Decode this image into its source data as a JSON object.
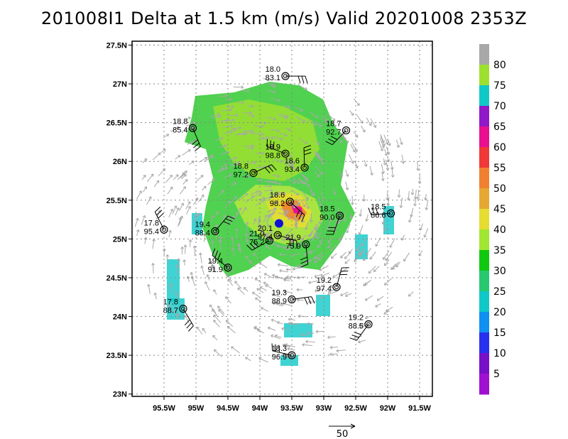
{
  "title": "201008I1 Delta at 1.5 km (m/s) Valid 20201008 2353Z",
  "map": {
    "x_ticks": [
      "95.5W",
      "95W",
      "94.5W",
      "94W",
      "93.5W",
      "93W",
      "92.5W",
      "92W",
      "91.5W"
    ],
    "y_ticks": [
      "27.5N",
      "27N",
      "26.5N",
      "26N",
      "25.5N",
      "25N",
      "24.5N",
      "24N",
      "23.5N",
      "23N"
    ],
    "lon_range": [
      -96.0,
      -91.3
    ],
    "lat_range": [
      22.97,
      27.55
    ],
    "storm_center": {
      "lon": -93.7,
      "lat": 25.2
    }
  },
  "colorbar": {
    "labels": [
      "80",
      "75",
      "70",
      "65",
      "60",
      "55",
      "50",
      "45",
      "40",
      "35",
      "30",
      "25",
      "20",
      "15",
      "10",
      "5"
    ],
    "colors": [
      "#a8a8a8",
      "#9ee030",
      "#10c8c8",
      "#9018c8",
      "#e81090",
      "#f03838",
      "#f08030",
      "#e6a832",
      "#e6dc32",
      "#a0e632",
      "#10c810",
      "#28c870",
      "#10c8c8",
      "#1090f0",
      "#2830f0",
      "#7810c8",
      "#a010d0"
    ]
  },
  "stations": [
    {
      "lon": -93.6,
      "lat": 27.1,
      "t": "18.0",
      "p": "83.1"
    },
    {
      "lon": -95.05,
      "lat": 26.43,
      "t": "18.8",
      "p": "85.4"
    },
    {
      "lon": -92.65,
      "lat": 26.4,
      "t": "18.7",
      "p": "92.7"
    },
    {
      "lon": -93.6,
      "lat": 26.1,
      "t": "18.9",
      "p": "98.8"
    },
    {
      "lon": -93.3,
      "lat": 25.92,
      "t": "18.6",
      "p": "93.4"
    },
    {
      "lon": -94.1,
      "lat": 25.85,
      "t": "18.8",
      "p": "97.2"
    },
    {
      "lon": -93.53,
      "lat": 25.48,
      "t": "18.6",
      "p": "98.2"
    },
    {
      "lon": -92.75,
      "lat": 25.3,
      "t": "18.5",
      "p": "90.0"
    },
    {
      "lon": -91.95,
      "lat": 25.33,
      "t": "18.5",
      "p": "86.6"
    },
    {
      "lon": -95.5,
      "lat": 25.12,
      "t": "17.8",
      "p": "95.4"
    },
    {
      "lon": -94.7,
      "lat": 25.1,
      "t": "19.4",
      "p": "88.4"
    },
    {
      "lon": -93.72,
      "lat": 25.05,
      "t": "20.1",
      "p": "97.4"
    },
    {
      "lon": -93.28,
      "lat": 24.93,
      "t": "21.9",
      "p": "75.9"
    },
    {
      "lon": -93.85,
      "lat": 24.98,
      "t": "21.0",
      "p": "75.2"
    },
    {
      "lon": -94.5,
      "lat": 24.63,
      "t": "19.4",
      "p": "91.9"
    },
    {
      "lon": -92.8,
      "lat": 24.38,
      "t": "19.2",
      "p": "97.4"
    },
    {
      "lon": -93.5,
      "lat": 24.22,
      "t": "19.3",
      "p": "88.9"
    },
    {
      "lon": -95.2,
      "lat": 24.1,
      "t": "17.8",
      "p": "88.7"
    },
    {
      "lon": -92.3,
      "lat": 23.9,
      "t": "19.2",
      "p": "88.5"
    },
    {
      "lon": -93.5,
      "lat": 23.5,
      "t": "18.3",
      "p": "96.9"
    }
  ],
  "scale_label": "50"
}
